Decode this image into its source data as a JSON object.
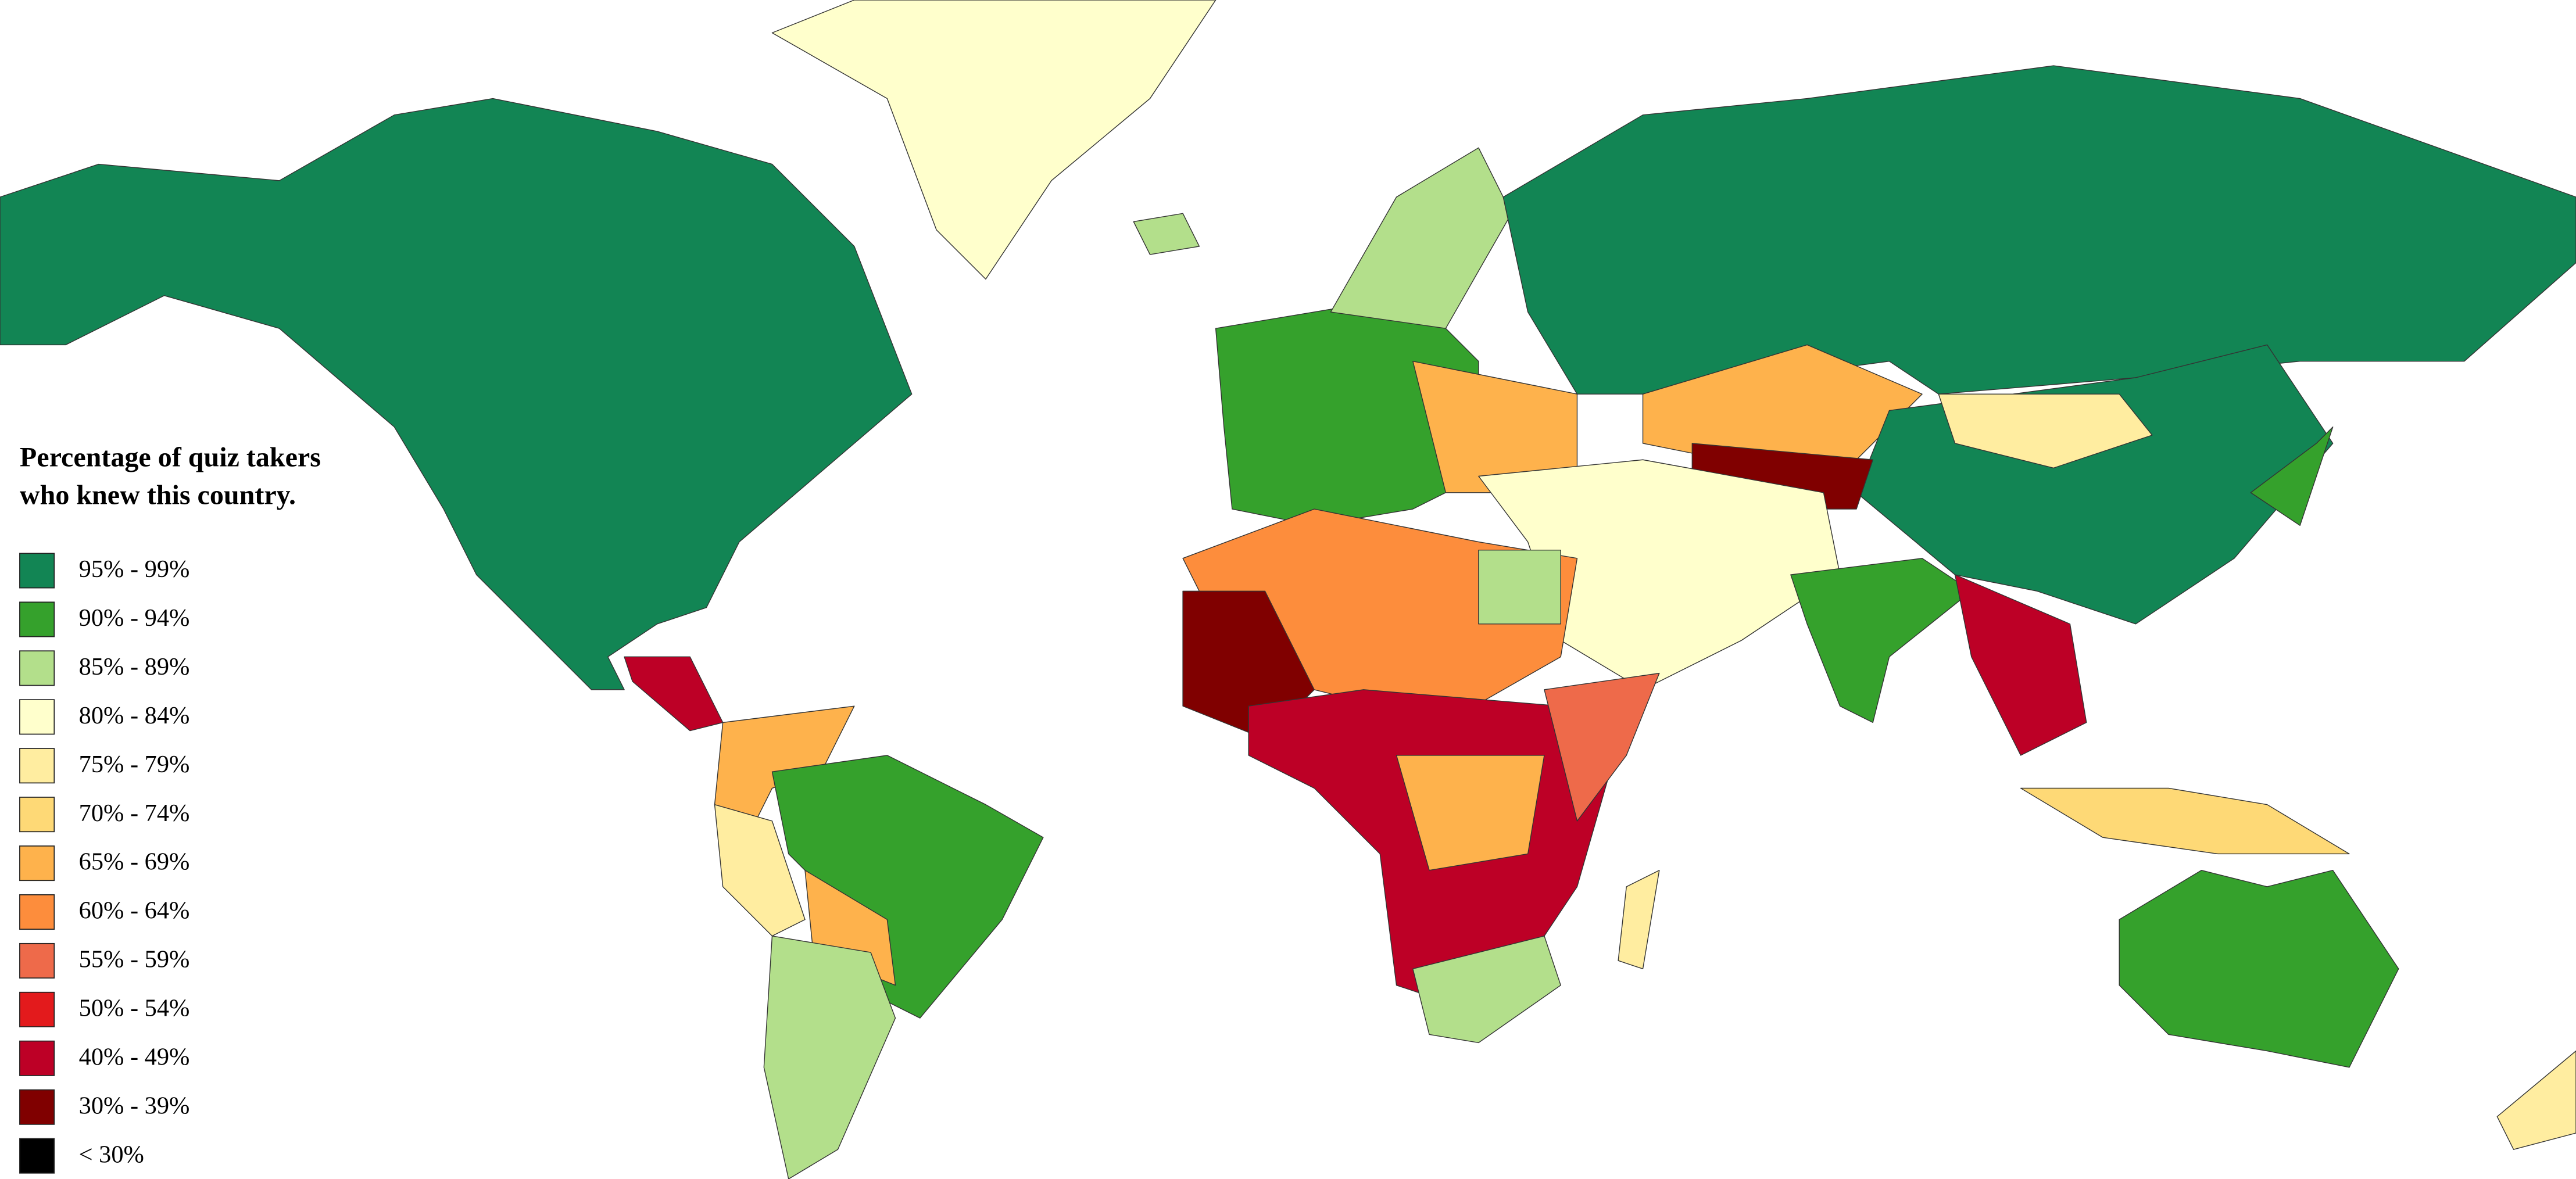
{
  "legend": {
    "title": [
      "Percentage of quiz takers",
      "who knew this country."
    ],
    "items": [
      {
        "label": "95% - 99%",
        "color": "#128554"
      },
      {
        "label": "90% - 94%",
        "color": "#35a12c"
      },
      {
        "label": "85% - 89%",
        "color": "#b3df8b"
      },
      {
        "label": "80% - 84%",
        "color": "#ffffcc"
      },
      {
        "label": "75% - 79%",
        "color": "#ffeda0"
      },
      {
        "label": "70% - 74%",
        "color": "#fed976"
      },
      {
        "label": "65% - 69%",
        "color": "#feb24c"
      },
      {
        "label": "60% - 64%",
        "color": "#fd8d3c"
      },
      {
        "label": "55% - 59%",
        "color": "#ee6a4a"
      },
      {
        "label": "50% - 54%",
        "color": "#e31a1c"
      },
      {
        "label": "40% - 49%",
        "color": "#bd0026"
      },
      {
        "label": "30% - 39%",
        "color": "#800000"
      },
      {
        "label": "< 30%",
        "color": "#000000"
      }
    ]
  }
}
